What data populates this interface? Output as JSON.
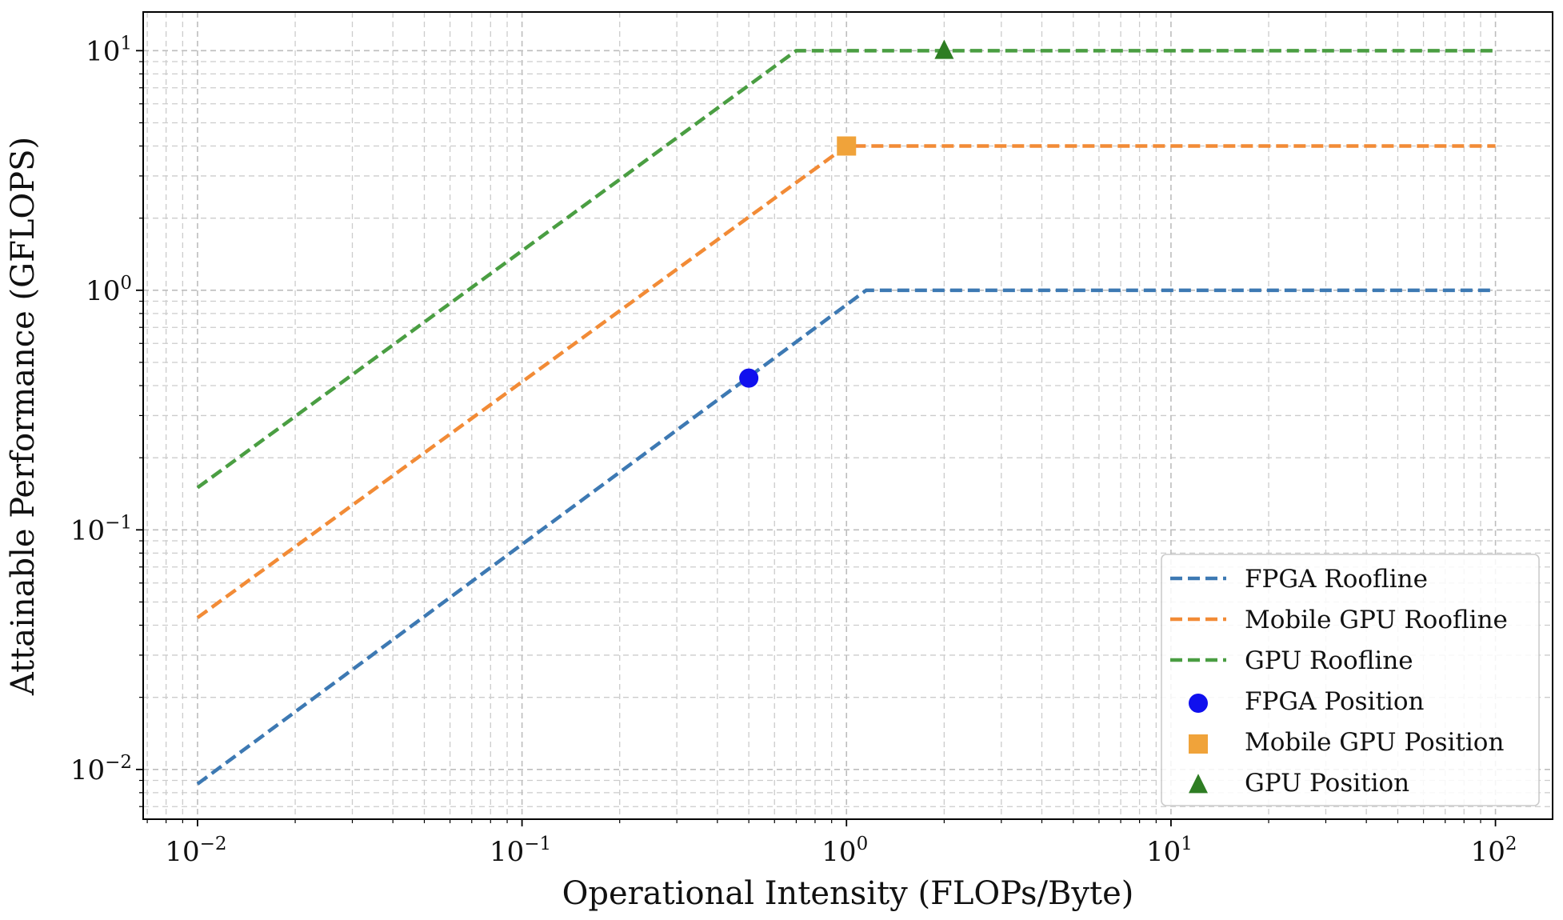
{
  "chart_data": {
    "type": "line",
    "scale": {
      "x": "log",
      "y": "log"
    },
    "xlabel": "Operational Intensity (FLOPs/Byte)",
    "ylabel": "Attainable Performance (GFLOPS)",
    "xlim": [
      0.0068,
      150
    ],
    "ylim": [
      0.0062,
      14.5
    ],
    "grid": true,
    "x_ticks": [
      {
        "base": "10",
        "exp": "−2",
        "value": 0.01
      },
      {
        "base": "10",
        "exp": "−1",
        "value": 0.1
      },
      {
        "base": "10",
        "exp": "0",
        "value": 1
      },
      {
        "base": "10",
        "exp": "1",
        "value": 10
      },
      {
        "base": "10",
        "exp": "2",
        "value": 100
      }
    ],
    "y_ticks": [
      {
        "base": "10",
        "exp": "−2",
        "value": 0.01
      },
      {
        "base": "10",
        "exp": "−1",
        "value": 0.1
      },
      {
        "base": "10",
        "exp": "0",
        "value": 1
      },
      {
        "base": "10",
        "exp": "1",
        "value": 10
      }
    ],
    "series": [
      {
        "name": "FPGA Roofline",
        "style": "dashed-line",
        "color": "#3d79b3",
        "x": [
          0.01,
          1.15,
          100
        ],
        "y": [
          0.0087,
          1.0,
          1.0
        ]
      },
      {
        "name": "Mobile GPU Roofline",
        "style": "dashed-line",
        "color": "#f28b36",
        "x": [
          0.01,
          1.0,
          100
        ],
        "y": [
          0.043,
          4.0,
          4.0
        ]
      },
      {
        "name": "GPU Roofline",
        "style": "dashed-line",
        "color": "#4a9e42",
        "x": [
          0.01,
          0.7,
          100
        ],
        "y": [
          0.15,
          10.0,
          10.0
        ]
      },
      {
        "name": "FPGA Position",
        "style": "marker",
        "marker": "circle",
        "color": "#1010ee",
        "x": [
          0.5
        ],
        "y": [
          0.43
        ]
      },
      {
        "name": "Mobile GPU Position",
        "style": "marker",
        "marker": "square",
        "color": "#f0a33a",
        "x": [
          1.0
        ],
        "y": [
          4.0
        ]
      },
      {
        "name": "GPU Position",
        "style": "marker",
        "marker": "triangle",
        "color": "#2e7d23",
        "x": [
          2.0
        ],
        "y": [
          10.0
        ]
      }
    ],
    "legend": {
      "placement": "bottom-right"
    }
  }
}
